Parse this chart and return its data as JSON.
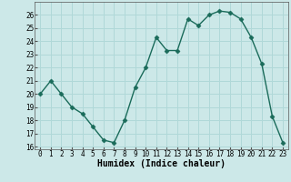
{
  "x": [
    0,
    1,
    2,
    3,
    4,
    5,
    6,
    7,
    8,
    9,
    10,
    11,
    12,
    13,
    14,
    15,
    16,
    17,
    18,
    19,
    20,
    21,
    22,
    23
  ],
  "y": [
    20,
    21,
    20,
    19,
    18.5,
    17.5,
    16.5,
    16.3,
    18,
    20.5,
    22,
    24.3,
    23.3,
    23.3,
    25.7,
    25.2,
    26,
    26.3,
    26.2,
    25.7,
    24.3,
    22.3,
    18.3,
    16.3
  ],
  "line_color": "#1a6b5a",
  "marker": "D",
  "markersize": 2.5,
  "linewidth": 1.0,
  "bg_color": "#cce8e8",
  "grid_color": "#b0d8d8",
  "xlabel": "Humidex (Indice chaleur)",
  "xlabel_fontsize": 7,
  "ylim": [
    15.8,
    27.0
  ],
  "xlim": [
    -0.5,
    23.5
  ],
  "yticks": [
    16,
    17,
    18,
    19,
    20,
    21,
    22,
    23,
    24,
    25,
    26
  ],
  "xticks": [
    0,
    1,
    2,
    3,
    4,
    5,
    6,
    7,
    8,
    9,
    10,
    11,
    12,
    13,
    14,
    15,
    16,
    17,
    18,
    19,
    20,
    21,
    22,
    23
  ],
  "tick_fontsize": 5.5
}
